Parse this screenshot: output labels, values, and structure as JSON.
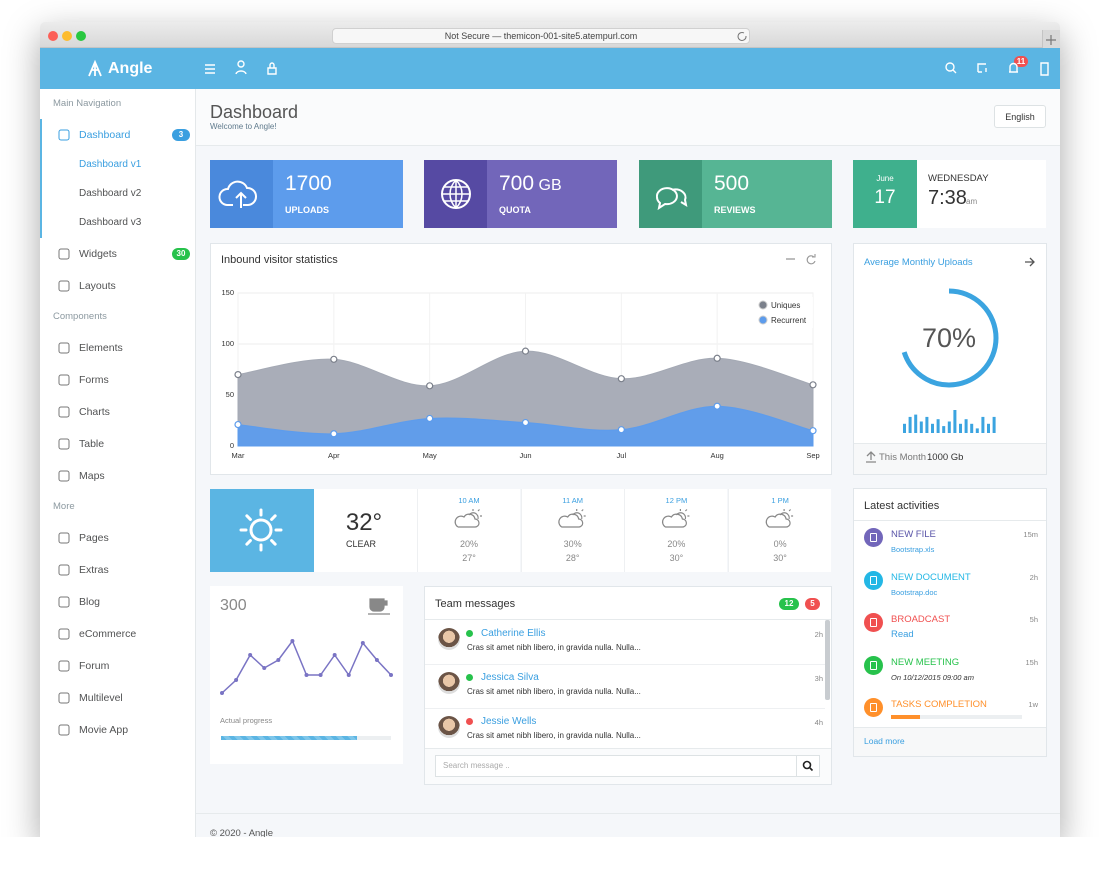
{
  "browser": {
    "address": "Not Secure — themicon-001-site5.atempurl.com"
  },
  "header": {
    "brand": "Angle",
    "notification_count": 11
  },
  "sidebar": [
    {
      "heading": "Main Navigation",
      "items": [
        {
          "label": "Dashboard",
          "badge": 3,
          "children": [
            "Dashboard v1",
            "Dashboard v2",
            "Dashboard v3"
          ]
        },
        {
          "label": "Widgets",
          "badge": 30
        },
        {
          "label": "Layouts"
        }
      ]
    },
    {
      "heading": "Components",
      "items": [
        {
          "label": "Elements"
        },
        {
          "label": "Forms"
        },
        {
          "label": "Charts"
        },
        {
          "label": "Table"
        },
        {
          "label": "Maps"
        }
      ]
    },
    {
      "heading": "More",
      "items": [
        {
          "label": "Pages"
        },
        {
          "label": "Extras"
        },
        {
          "label": "Blog"
        },
        {
          "label": "eCommerce"
        },
        {
          "label": "Forum"
        },
        {
          "label": "Multilevel"
        },
        {
          "label": "Movie App"
        }
      ]
    }
  ],
  "page": {
    "title": "Dashboard",
    "subtitle": "Welcome to Angle!",
    "language": "English"
  },
  "stats": [
    {
      "value": 1700,
      "label": "UPLOADS"
    },
    {
      "value": 700,
      "unit": "GB",
      "label": "QUOTA"
    },
    {
      "value": 500,
      "label": "REVIEWS"
    }
  ],
  "clock": {
    "month": "June",
    "day": 17,
    "weekday": "WEDNESDAY",
    "time": "7:38",
    "meridiem": "am"
  },
  "chart_data": {
    "type": "area",
    "title": "Inbound visitor statistics",
    "categories": [
      "Mar",
      "Apr",
      "May",
      "Jun",
      "Jul",
      "Aug",
      "Sep"
    ],
    "series": [
      {
        "name": "Uniques",
        "color": "#a4a9b4",
        "values": [
          70,
          85,
          59,
          93,
          66,
          86,
          60
        ]
      },
      {
        "name": "Recurrent",
        "color": "#5d9cec",
        "values": [
          21,
          12,
          27,
          23,
          16,
          39,
          15
        ]
      }
    ],
    "ylim": [
      0,
      150
    ],
    "yticks": [
      0,
      50,
      100,
      150
    ],
    "grid": true,
    "legend": "top-right"
  },
  "uploads": {
    "title": "Average Monthly Uploads",
    "percent": 70,
    "percent_label": "70%",
    "bars": [
      8,
      14,
      16,
      10,
      14,
      8,
      12,
      6,
      10,
      20,
      8,
      12,
      8,
      4,
      14,
      8,
      14
    ],
    "footer_label": "This Month",
    "footer_value": "1000 Gb"
  },
  "weather": {
    "temperature": "32°",
    "condition": "CLEAR",
    "forecast": [
      {
        "time": "10 AM",
        "precipitation": "20%",
        "temperature": "27°"
      },
      {
        "time": "11 AM",
        "precipitation": "30%",
        "temperature": "28°"
      },
      {
        "time": "12 PM",
        "precipitation": "20%",
        "temperature": "30°"
      },
      {
        "time": "1 PM",
        "precipitation": "0%",
        "temperature": "30°"
      }
    ]
  },
  "progress_widget": {
    "value": 300,
    "line": [
      0,
      13,
      38,
      25,
      33,
      52,
      18,
      18,
      38,
      18,
      50,
      33,
      18
    ],
    "progress_label": "Actual progress",
    "progress": 80
  },
  "messages": {
    "title": "Team messages",
    "badges": [
      12,
      5
    ],
    "items": [
      {
        "name": "Catherine Ellis",
        "time": "2h",
        "text": "Cras sit amet nibh libero, in gravida nulla. Nulla..."
      },
      {
        "name": "Jessica Silva",
        "time": "3h",
        "text": "Cras sit amet nibh libero, in gravida nulla. Nulla..."
      },
      {
        "name": "Jessie Wells",
        "time": "4h",
        "text": "Cras sit amet nibh libero, in gravida nulla. Nulla..."
      }
    ],
    "search_placeholder": "Search message .."
  },
  "activities": {
    "title": "Latest activities",
    "items": [
      {
        "title": "NEW FILE",
        "detail": "Bootstrap.xls",
        "time": "15m"
      },
      {
        "title": "NEW DOCUMENT",
        "detail": "Bootstrap.doc",
        "time": "2h"
      },
      {
        "title": "BROADCAST",
        "detail": "Read",
        "time": "5h"
      },
      {
        "title": "NEW MEETING",
        "detail": "On 10/12/2015 09:00 am",
        "time": "15h"
      },
      {
        "title": "TASKS COMPLETION",
        "progress": 22,
        "time": "1w"
      }
    ],
    "more": "Load more"
  },
  "footer": "© 2020 - Angle"
}
